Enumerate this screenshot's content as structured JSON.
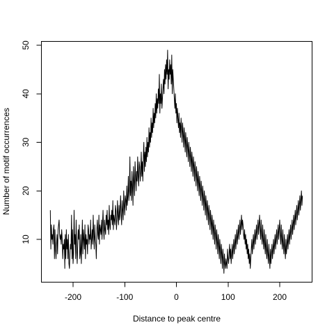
{
  "chart_data": {
    "type": "line",
    "title": "",
    "xlabel": "Distance to peak centre",
    "ylabel": "Number of motif occurrences",
    "xlim": [
      -250,
      250
    ],
    "ylim": [
      2,
      51
    ],
    "grid": false,
    "legend": "none",
    "x_ticks": [
      -200,
      -100,
      0,
      100,
      200
    ],
    "x_tick_labels": [
      "-200",
      "-100",
      "0",
      "100",
      "200"
    ],
    "y_ticks": [
      10,
      20,
      30,
      40,
      50
    ],
    "y_tick_labels": [
      "10",
      "20",
      "30",
      "40",
      "50"
    ],
    "x_start": -244,
    "x_step": 1,
    "series": [
      {
        "color": "#000000",
        "values": [
          16,
          8,
          13,
          10,
          11,
          9,
          12,
          13,
          6,
          12,
          8,
          6,
          9,
          11,
          7,
          12,
          13,
          14,
          11,
          10,
          11,
          9,
          12,
          10,
          6,
          9,
          8,
          10,
          4,
          11,
          6,
          12,
          8,
          10,
          6,
          11,
          5,
          4,
          7,
          9,
          8,
          15,
          6,
          12,
          5,
          7,
          16,
          9,
          11,
          6,
          14,
          8,
          5,
          9,
          12,
          10,
          13,
          6,
          7,
          11,
          5,
          9,
          14,
          7,
          12,
          10,
          8,
          13,
          6,
          11,
          9,
          10,
          7,
          13,
          12,
          9,
          11,
          10,
          14,
          8,
          10,
          12,
          9,
          15,
          11,
          8,
          13,
          10,
          9,
          6,
          12,
          14,
          11,
          10,
          15,
          9,
          13,
          12,
          11,
          14,
          10,
          13,
          16,
          12,
          10,
          14,
          12,
          11,
          15,
          13,
          16,
          12,
          14,
          11,
          17,
          13,
          12,
          15,
          14,
          16,
          13,
          18,
          12,
          15,
          14,
          13,
          17,
          16,
          12,
          14,
          18,
          15,
          13,
          17,
          14,
          16,
          19,
          15,
          13,
          18,
          16,
          14,
          20,
          17,
          15,
          19,
          18,
          16,
          21,
          17,
          19,
          23,
          18,
          20,
          27,
          19,
          22,
          18,
          24,
          21,
          17,
          25,
          22,
          19,
          26,
          23,
          20,
          24,
          22,
          27,
          23,
          21,
          26,
          25,
          22,
          24,
          28,
          23,
          26,
          22,
          27,
          30,
          24,
          28,
          25,
          29,
          26,
          31,
          27,
          30,
          28,
          33,
          29,
          32,
          30,
          35,
          31,
          34,
          32,
          37,
          33,
          36,
          34,
          38,
          35,
          40,
          36,
          39,
          37,
          41,
          38,
          44,
          36,
          40,
          38,
          42,
          37,
          39,
          41,
          43,
          40,
          45,
          42,
          46,
          43,
          47,
          44,
          49,
          41,
          45,
          43,
          47,
          44,
          46,
          42,
          48,
          40,
          45,
          43,
          41,
          39,
          37,
          40,
          36,
          38,
          34,
          37,
          35,
          33,
          36,
          32,
          34,
          31,
          35,
          33,
          30,
          34,
          32,
          29,
          33,
          31,
          28,
          32,
          30,
          27,
          31,
          29,
          26,
          30,
          28,
          25,
          29,
          27,
          24,
          28,
          26,
          23,
          27,
          25,
          22,
          26,
          24,
          21,
          25,
          23,
          20,
          24,
          22,
          19,
          23,
          21,
          18,
          22,
          20,
          17,
          21,
          19,
          16,
          20,
          18,
          15,
          19,
          17,
          14,
          18,
          16,
          13,
          17,
          15,
          12,
          16,
          14,
          11,
          15,
          13,
          10,
          14,
          12,
          9,
          13,
          11,
          8,
          12,
          10,
          7,
          11,
          9,
          6,
          10,
          8,
          5,
          9,
          7,
          4,
          8,
          6,
          3,
          7,
          5,
          4,
          6,
          5,
          4,
          8,
          6,
          5,
          7,
          9,
          6,
          8,
          5,
          7,
          9,
          6,
          8,
          10,
          7,
          9,
          11,
          8,
          10,
          12,
          9,
          11,
          13,
          10,
          12,
          14,
          11,
          13,
          15,
          12,
          14,
          13,
          11,
          10,
          12,
          9,
          11,
          8,
          10,
          7,
          9,
          6,
          8,
          5,
          7,
          4,
          6,
          8,
          10,
          7,
          9,
          11,
          8,
          10,
          12,
          9,
          11,
          13,
          10,
          12,
          14,
          11,
          13,
          15,
          12,
          10,
          14,
          11,
          9,
          13,
          10,
          8,
          12,
          9,
          7,
          11,
          8,
          6,
          10,
          7,
          5,
          9,
          6,
          4,
          8,
          5,
          7,
          9,
          6,
          8,
          10,
          7,
          9,
          11,
          8,
          10,
          12,
          9,
          11,
          13,
          10,
          12,
          14,
          11,
          9,
          13,
          10,
          8,
          12,
          9,
          7,
          11,
          8,
          6,
          10,
          7,
          9,
          11,
          8,
          10,
          12,
          9,
          11,
          13,
          10,
          12,
          14,
          11,
          13,
          15,
          12,
          14,
          16,
          13,
          15,
          17,
          14,
          16,
          18,
          15,
          17,
          19,
          16,
          18,
          20,
          17,
          19
        ]
      }
    ]
  }
}
